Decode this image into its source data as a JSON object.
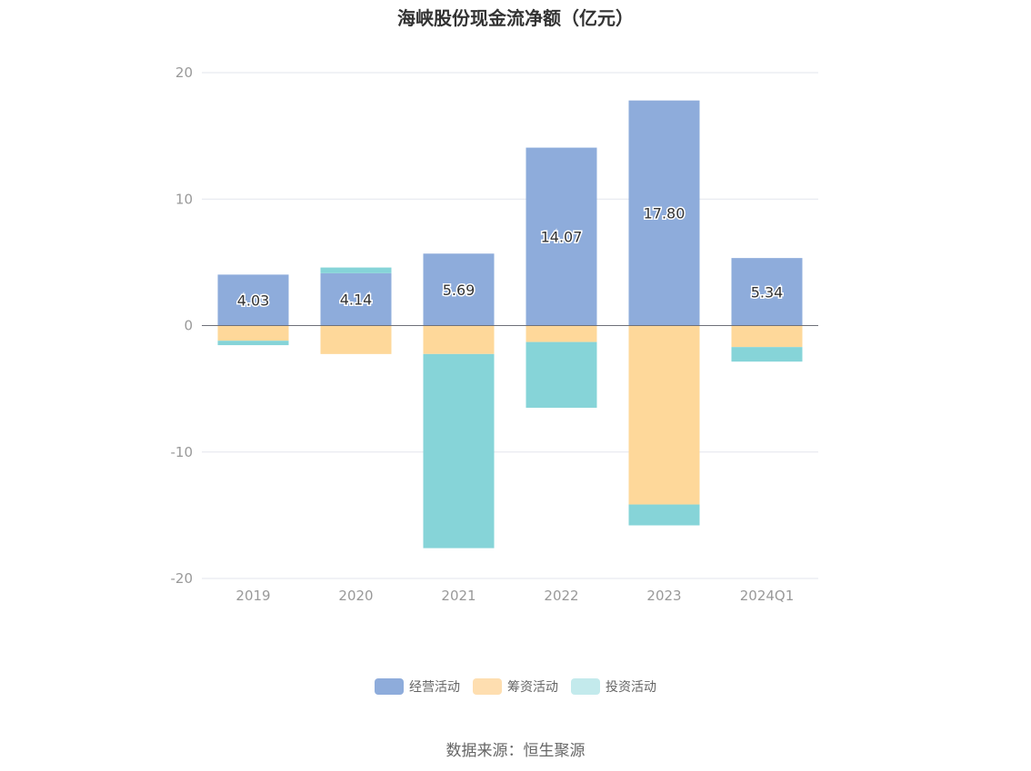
{
  "chart_data": {
    "type": "bar",
    "stacked": true,
    "title": "海峡股份现金流净额（亿元）",
    "categories": [
      "2019",
      "2020",
      "2021",
      "2022",
      "2023",
      "2024Q1"
    ],
    "ylim": [
      -20,
      20
    ],
    "yticks": [
      20,
      10,
      0,
      -10,
      -20
    ],
    "grid": true,
    "legend_position": "bottom",
    "series": [
      {
        "name": "经营活动",
        "color": "#8eacdb",
        "values": [
          4.03,
          4.14,
          5.69,
          14.07,
          17.8,
          5.34
        ],
        "labels": [
          "4.03",
          "4.14",
          "5.69",
          "14.07",
          "17.80",
          "5.34"
        ]
      },
      {
        "name": "筹资活动",
        "color": "#fed89a",
        "values": [
          -1.2,
          -2.25,
          -2.25,
          -1.3,
          -14.15,
          -1.7
        ]
      },
      {
        "name": "投资活动",
        "color": "#86d4d8",
        "values": [
          -0.35,
          0.45,
          -15.35,
          -5.2,
          -1.65,
          -1.15
        ]
      }
    ],
    "legend_colors": [
      "#8eacdb",
      "#fedeb0",
      "#c3eaec"
    ],
    "source": "数据来源：恒生聚源"
  }
}
